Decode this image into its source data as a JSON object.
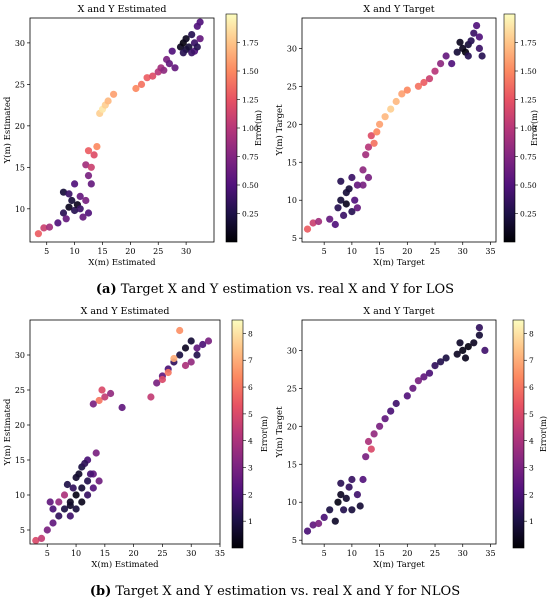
{
  "colormap": [
    "#000004",
    "#1d1147",
    "#51127c",
    "#822681",
    "#b73779",
    "#e75263",
    "#fc8961",
    "#fec488",
    "#fcfdbf"
  ],
  "captions": [
    {
      "label": "(a)",
      "text": "Target X and Y estimation vs. real X and Y for LOS"
    },
    {
      "label": "(b)",
      "text": "Target X and Y estimation vs. real X and Y for NLOS"
    }
  ],
  "chart_data": [
    {
      "type": "scatter",
      "title": "X and Y Estimated",
      "xlabel": "X(m) Estimated",
      "ylabel": "Y(m) Estimated",
      "colorbar_label": "Error(m)",
      "xlim": [
        2,
        35
      ],
      "ylim": [
        6,
        33
      ],
      "xticks": [
        5,
        10,
        15,
        20,
        25,
        30
      ],
      "yticks": [
        10,
        15,
        20,
        25,
        30
      ],
      "clim": [
        0,
        2
      ],
      "cticks": [
        0.25,
        0.5,
        0.75,
        1.0,
        1.25,
        1.5,
        1.75
      ],
      "cticklabels": [
        "0.25",
        "0.50",
        "0.75",
        "1.00",
        "1.25",
        "1.50",
        "1.75"
      ],
      "points": [
        [
          3.5,
          7,
          1.3
        ],
        [
          4.5,
          7.7,
          1.1
        ],
        [
          5.5,
          7.8,
          0.9
        ],
        [
          7,
          8.3,
          0.5
        ],
        [
          8,
          9.5,
          0.3
        ],
        [
          8.5,
          8.8,
          0.6
        ],
        [
          9,
          10.2,
          0.1
        ],
        [
          9.5,
          11,
          0.2
        ],
        [
          10,
          9.8,
          0.3
        ],
        [
          10.5,
          10.5,
          0.1
        ],
        [
          11,
          10,
          0.4
        ],
        [
          11.5,
          9,
          0.6
        ],
        [
          12,
          11,
          0.7
        ],
        [
          12.5,
          9.5,
          0.5
        ],
        [
          8,
          12,
          0.2
        ],
        [
          9,
          11.8,
          0.4
        ],
        [
          10,
          13,
          0.5
        ],
        [
          11,
          11.5,
          0.6
        ],
        [
          12.5,
          14,
          0.7
        ],
        [
          12,
          15.3,
          0.9
        ],
        [
          13,
          15,
          1.1
        ],
        [
          13.5,
          16.5,
          1.2
        ],
        [
          12.5,
          17,
          1.3
        ],
        [
          14,
          17.5,
          1.5
        ],
        [
          14.5,
          21.5,
          1.8
        ],
        [
          15,
          22,
          1.9
        ],
        [
          15.5,
          22.5,
          1.8
        ],
        [
          16,
          23,
          1.7
        ],
        [
          17,
          23.8,
          1.6
        ],
        [
          21,
          24.5,
          1.5
        ],
        [
          22,
          25,
          1.4
        ],
        [
          23,
          25.8,
          1.3
        ],
        [
          24,
          26,
          1.2
        ],
        [
          25,
          26.5,
          1
        ],
        [
          25.5,
          27,
          0.9
        ],
        [
          26,
          26.7,
          0.8
        ],
        [
          26.5,
          28,
          0.7
        ],
        [
          27,
          27.5,
          0.6
        ],
        [
          27.5,
          29,
          0.5
        ],
        [
          28,
          27,
          0.6
        ],
        [
          29,
          29.5,
          0.1
        ],
        [
          29.5,
          30,
          0.05
        ],
        [
          30,
          30.5,
          0.1
        ],
        [
          30.5,
          29.5,
          0.2
        ],
        [
          31,
          31,
          0.3
        ],
        [
          31.5,
          30,
          0.4
        ],
        [
          32,
          32,
          0.5
        ],
        [
          32.5,
          30.5,
          0.6
        ],
        [
          31.5,
          29,
          0.5
        ],
        [
          30,
          29.2,
          0.2
        ],
        [
          29.5,
          28.8,
          0.3
        ],
        [
          32.5,
          32.5,
          0.5
        ],
        [
          31,
          28.8,
          0.4
        ],
        [
          32,
          29.5,
          0.3
        ],
        [
          13,
          13,
          0.6
        ]
      ]
    },
    {
      "type": "scatter",
      "title": "X and Y Target",
      "xlabel": "X(m) Target",
      "ylabel": "Y(m) Target",
      "colorbar_label": "Error(m)",
      "xlim": [
        1,
        36
      ],
      "ylim": [
        4.5,
        34
      ],
      "xticks": [
        5,
        10,
        15,
        20,
        25,
        30,
        35
      ],
      "yticks": [
        5,
        10,
        15,
        20,
        25,
        30
      ],
      "clim": [
        0,
        2
      ],
      "cticks": [
        0.25,
        0.5,
        0.75,
        1.0,
        1.25,
        1.5,
        1.75
      ],
      "cticklabels": [
        "0.25",
        "0.50",
        "0.75",
        "1.00",
        "1.25",
        "1.50",
        "1.75"
      ],
      "points": [
        [
          2,
          6.2,
          1.3
        ],
        [
          3,
          7,
          1.1
        ],
        [
          4,
          7.2,
          0.9
        ],
        [
          6,
          7.5,
          0.6
        ],
        [
          7,
          6.8,
          0.5
        ],
        [
          7.5,
          9,
          0.3
        ],
        [
          8,
          10,
          0.2
        ],
        [
          8.5,
          8,
          0.4
        ],
        [
          9,
          9.5,
          0.1
        ],
        [
          9.5,
          11.5,
          0.2
        ],
        [
          10,
          8.5,
          0.3
        ],
        [
          10.5,
          10,
          0.5
        ],
        [
          11,
          9,
          0.6
        ],
        [
          12,
          12,
          0.7
        ],
        [
          8,
          12.5,
          0.3
        ],
        [
          9,
          11,
          0.2
        ],
        [
          10,
          13,
          0.4
        ],
        [
          12,
          14,
          0.8
        ],
        [
          12.5,
          16,
          0.9
        ],
        [
          13,
          17,
          1
        ],
        [
          13.5,
          18.5,
          1.2
        ],
        [
          14,
          17.5,
          1.4
        ],
        [
          14.5,
          19,
          1.5
        ],
        [
          15,
          20,
          1.6
        ],
        [
          16,
          21,
          1.7
        ],
        [
          17,
          22,
          1.8
        ],
        [
          18,
          23,
          1.7
        ],
        [
          19,
          24,
          1.6
        ],
        [
          20,
          24.5,
          1.5
        ],
        [
          22,
          25,
          1.4
        ],
        [
          23,
          25.5,
          1.3
        ],
        [
          24,
          26,
          1.1
        ],
        [
          25,
          27,
          1
        ],
        [
          26,
          28,
          0.8
        ],
        [
          27,
          29,
          0.6
        ],
        [
          28,
          28,
          0.5
        ],
        [
          29,
          29.5,
          0.2
        ],
        [
          30,
          30,
          0.1
        ],
        [
          30.5,
          29.5,
          0.05
        ],
        [
          31,
          30.5,
          0.2
        ],
        [
          31.5,
          31,
          0.3
        ],
        [
          32,
          32,
          0.4
        ],
        [
          32.5,
          33,
          0.5
        ],
        [
          33,
          30,
          0.4
        ],
        [
          33.5,
          29,
          0.3
        ],
        [
          31,
          29,
          0.3
        ],
        [
          29.5,
          30.8,
          0.1
        ],
        [
          33,
          31.5,
          0.5
        ],
        [
          13,
          13,
          0.7
        ],
        [
          11,
          12,
          0.6
        ]
      ]
    },
    {
      "type": "scatter",
      "title": "X and Y Estimated",
      "xlabel": "X(m) Estimated",
      "ylabel": "Y(m) Estimated",
      "colorbar_label": "Error(m)",
      "xlim": [
        2,
        35
      ],
      "ylim": [
        3,
        35
      ],
      "xticks": [
        5,
        10,
        15,
        20,
        25,
        30,
        35
      ],
      "yticks": [
        5,
        10,
        15,
        20,
        25,
        30
      ],
      "clim": [
        0,
        8.5
      ],
      "cticks": [
        1,
        2,
        3,
        4,
        5,
        6,
        7,
        8
      ],
      "cticklabels": [
        "1",
        "2",
        "3",
        "4",
        "5",
        "6",
        "7",
        "8"
      ],
      "points": [
        [
          3,
          3.5,
          5
        ],
        [
          4,
          3.8,
          4.5
        ],
        [
          5,
          5,
          3
        ],
        [
          6,
          6,
          2.5
        ],
        [
          7,
          7,
          1.5
        ],
        [
          8,
          8,
          1
        ],
        [
          9,
          9,
          0.5
        ],
        [
          10,
          10,
          0.3
        ],
        [
          11,
          11,
          0.8
        ],
        [
          12,
          12,
          1.2
        ],
        [
          9.5,
          11,
          1.5
        ],
        [
          10.5,
          13,
          0.6
        ],
        [
          11,
          14,
          1
        ],
        [
          12,
          15,
          2
        ],
        [
          13,
          13,
          2.5
        ],
        [
          13.5,
          16,
          3
        ],
        [
          7,
          9,
          3.5
        ],
        [
          8,
          10,
          4
        ],
        [
          6,
          8,
          2
        ],
        [
          5.5,
          9,
          2.5
        ],
        [
          9,
          7,
          1.8
        ],
        [
          10,
          8,
          0.9
        ],
        [
          11,
          9,
          0.4
        ],
        [
          12,
          10,
          1.6
        ],
        [
          13,
          11,
          2.2
        ],
        [
          14,
          12,
          2.8
        ],
        [
          14,
          23.5,
          6
        ],
        [
          14.5,
          25,
          5
        ],
        [
          15,
          24,
          4.5
        ],
        [
          13,
          23,
          3
        ],
        [
          16,
          24.5,
          3.5
        ],
        [
          18,
          22.5,
          2.5
        ],
        [
          23,
          24,
          4.5
        ],
        [
          24,
          26,
          3
        ],
        [
          25,
          27,
          2.5
        ],
        [
          26,
          28,
          2
        ],
        [
          27,
          29,
          1.5
        ],
        [
          28,
          30,
          1
        ],
        [
          29,
          31,
          0.5
        ],
        [
          30,
          32,
          0.8
        ],
        [
          31,
          30,
          1.2
        ],
        [
          32,
          31.5,
          2
        ],
        [
          33,
          32,
          3
        ],
        [
          28,
          33.5,
          6.5
        ],
        [
          27,
          29.5,
          7
        ],
        [
          25,
          26.5,
          5
        ],
        [
          26,
          27.5,
          6
        ],
        [
          29,
          28.5,
          4
        ],
        [
          30,
          29,
          3.5
        ],
        [
          31,
          31,
          2.5
        ],
        [
          9,
          8.5,
          0.6
        ],
        [
          8.5,
          11.5,
          1.1
        ],
        [
          10,
          12.5,
          0.7
        ],
        [
          12.5,
          13,
          1.9
        ],
        [
          11.5,
          14.5,
          1.4
        ]
      ]
    },
    {
      "type": "scatter",
      "title": "X and Y Target",
      "xlabel": "X(m) Target",
      "ylabel": "Y(m) Target",
      "colorbar_label": "Error(m)",
      "xlim": [
        1,
        36
      ],
      "ylim": [
        4.5,
        34
      ],
      "xticks": [
        5,
        10,
        15,
        20,
        25,
        30,
        35
      ],
      "yticks": [
        5,
        10,
        15,
        20,
        25,
        30
      ],
      "clim": [
        0,
        8.5
      ],
      "cticks": [
        1,
        2,
        3,
        4,
        5,
        6,
        7,
        8
      ],
      "cticklabels": [
        "1",
        "2",
        "3",
        "4",
        "5",
        "6",
        "7",
        "8"
      ],
      "points": [
        [
          2,
          6.2,
          2
        ],
        [
          3,
          7,
          2.5
        ],
        [
          4,
          7.2,
          3
        ],
        [
          5,
          8,
          2
        ],
        [
          6,
          9,
          1
        ],
        [
          7,
          7.5,
          0.6
        ],
        [
          7.5,
          10,
          0.3
        ],
        [
          8,
          11,
          0.5
        ],
        [
          8.5,
          9,
          1.2
        ],
        [
          9,
          10.5,
          0.7
        ],
        [
          9.5,
          12,
          1.5
        ],
        [
          10,
          9,
          0.9
        ],
        [
          11,
          11,
          1.8
        ],
        [
          12,
          13,
          2.2
        ],
        [
          12.5,
          16,
          3
        ],
        [
          13,
          18,
          4
        ],
        [
          13.5,
          17,
          5
        ],
        [
          14,
          19,
          3.5
        ],
        [
          15,
          20,
          3
        ],
        [
          16,
          21,
          2.5
        ],
        [
          17,
          22,
          2
        ],
        [
          18,
          23,
          1.8
        ],
        [
          20,
          24,
          2.2
        ],
        [
          21,
          25,
          2.6
        ],
        [
          22,
          26,
          3
        ],
        [
          23,
          26.5,
          2.5
        ],
        [
          24,
          27,
          2
        ],
        [
          25,
          28,
          1.5
        ],
        [
          26,
          28.5,
          1.2
        ],
        [
          27,
          29,
          1
        ],
        [
          29,
          29.5,
          0.5
        ],
        [
          30,
          30,
          0.3
        ],
        [
          31,
          30.5,
          0.2
        ],
        [
          32,
          31,
          0.5
        ],
        [
          33,
          32,
          0.8
        ],
        [
          33,
          33,
          1.5
        ],
        [
          34,
          30,
          1.8
        ],
        [
          30.5,
          29,
          0.4
        ],
        [
          29.5,
          31,
          0.6
        ],
        [
          10,
          13,
          1.6
        ],
        [
          8,
          12.5,
          1.3
        ],
        [
          11.5,
          9.5,
          0.8
        ]
      ]
    }
  ]
}
